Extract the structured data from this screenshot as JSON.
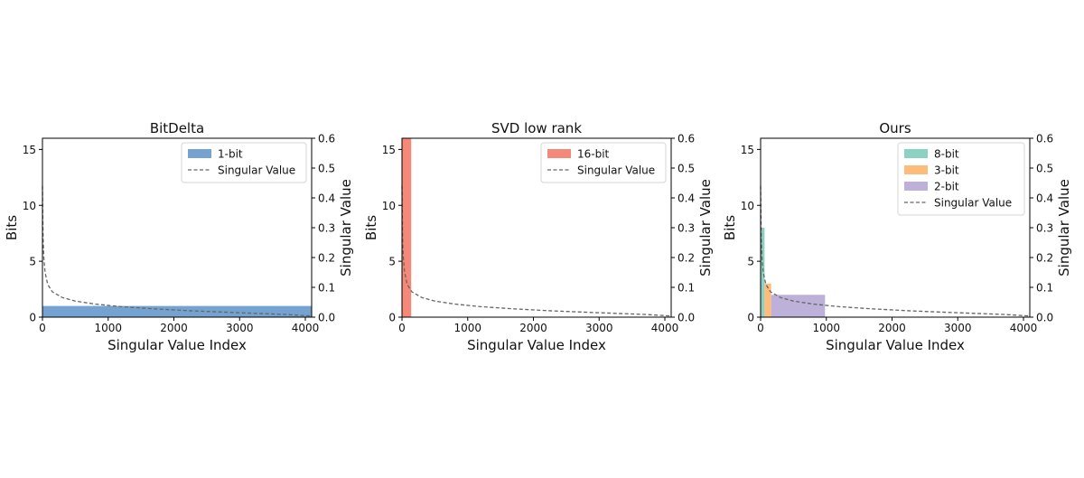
{
  "chart_data": [
    {
      "type": "bar",
      "title": "BitDelta",
      "xlabel": "Singular Value Index",
      "ylabel": "Bits",
      "y2label": "Singular Value",
      "xlim": [
        0,
        4096
      ],
      "ylim": [
        0,
        16
      ],
      "y2lim": [
        0,
        0.6
      ],
      "xticks": [
        "0",
        "1000",
        "2000",
        "3000",
        "4000"
      ],
      "yticks": [
        "0",
        "5",
        "10",
        "15"
      ],
      "y2ticks": [
        "0.0",
        "0.1",
        "0.2",
        "0.3",
        "0.4",
        "0.5",
        "0.6"
      ],
      "legend_position": "top-right",
      "bit_allocation": [
        {
          "name": "1-bit",
          "x_start": 0,
          "x_end": 4096,
          "bits": 1,
          "color": "#6699cc"
        }
      ],
      "singular_value_curve": {
        "name": "Singular Value",
        "color": "#666666",
        "style": "dashed",
        "points": [
          [
            0,
            0.44
          ],
          [
            5,
            0.33
          ],
          [
            10,
            0.26
          ],
          [
            20,
            0.2
          ],
          [
            40,
            0.15
          ],
          [
            80,
            0.11
          ],
          [
            150,
            0.085
          ],
          [
            300,
            0.066
          ],
          [
            500,
            0.054
          ],
          [
            800,
            0.044
          ],
          [
            1200,
            0.035
          ],
          [
            1700,
            0.028
          ],
          [
            2300,
            0.021
          ],
          [
            3000,
            0.015
          ],
          [
            3700,
            0.009
          ],
          [
            4096,
            0.004
          ]
        ]
      }
    },
    {
      "type": "bar",
      "title": "SVD low rank",
      "xlabel": "Singular Value Index",
      "ylabel": "Bits",
      "y2label": "Singular Value",
      "xlim": [
        0,
        4096
      ],
      "ylim": [
        0,
        16
      ],
      "y2lim": [
        0,
        0.6
      ],
      "xticks": [
        "0",
        "1000",
        "2000",
        "3000",
        "4000"
      ],
      "yticks": [
        "0",
        "5",
        "10",
        "15"
      ],
      "y2ticks": [
        "0.0",
        "0.1",
        "0.2",
        "0.3",
        "0.4",
        "0.5",
        "0.6"
      ],
      "legend_position": "top-right",
      "bit_allocation": [
        {
          "name": "16-bit",
          "x_start": 0,
          "x_end": 140,
          "bits": 16,
          "color": "#f47c6a"
        }
      ],
      "singular_value_curve": {
        "name": "Singular Value",
        "color": "#666666",
        "style": "dashed",
        "points": [
          [
            0,
            0.44
          ],
          [
            5,
            0.33
          ],
          [
            10,
            0.26
          ],
          [
            20,
            0.2
          ],
          [
            40,
            0.15
          ],
          [
            80,
            0.11
          ],
          [
            150,
            0.085
          ],
          [
            300,
            0.066
          ],
          [
            500,
            0.054
          ],
          [
            800,
            0.044
          ],
          [
            1200,
            0.035
          ],
          [
            1700,
            0.028
          ],
          [
            2300,
            0.021
          ],
          [
            3000,
            0.015
          ],
          [
            3700,
            0.009
          ],
          [
            4096,
            0.004
          ]
        ]
      }
    },
    {
      "type": "bar",
      "title": "Ours",
      "xlabel": "Singular Value Index",
      "ylabel": "Bits",
      "y2label": "Singular Value",
      "xlim": [
        0,
        4096
      ],
      "ylim": [
        0,
        16
      ],
      "y2lim": [
        0,
        0.6
      ],
      "xticks": [
        "0",
        "1000",
        "2000",
        "3000",
        "4000"
      ],
      "yticks": [
        "0",
        "5",
        "10",
        "15"
      ],
      "y2ticks": [
        "0.0",
        "0.1",
        "0.2",
        "0.3",
        "0.4",
        "0.5",
        "0.6"
      ],
      "legend_position": "top-right",
      "bit_allocation": [
        {
          "name": "8-bit",
          "x_start": 0,
          "x_end": 60,
          "bits": 8,
          "color": "#7fcdbb"
        },
        {
          "name": "3-bit",
          "x_start": 60,
          "x_end": 160,
          "bits": 3,
          "color": "#fdb56b"
        },
        {
          "name": "2-bit",
          "x_start": 160,
          "x_end": 980,
          "bits": 2,
          "color": "#b6a9d6"
        }
      ],
      "singular_value_curve": {
        "name": "Singular Value",
        "color": "#666666",
        "style": "dashed",
        "points": [
          [
            0,
            0.44
          ],
          [
            5,
            0.33
          ],
          [
            10,
            0.26
          ],
          [
            20,
            0.2
          ],
          [
            40,
            0.15
          ],
          [
            80,
            0.11
          ],
          [
            150,
            0.085
          ],
          [
            300,
            0.066
          ],
          [
            500,
            0.054
          ],
          [
            800,
            0.044
          ],
          [
            1200,
            0.035
          ],
          [
            1700,
            0.028
          ],
          [
            2300,
            0.021
          ],
          [
            3000,
            0.015
          ],
          [
            3700,
            0.009
          ],
          [
            4096,
            0.004
          ]
        ]
      }
    }
  ]
}
